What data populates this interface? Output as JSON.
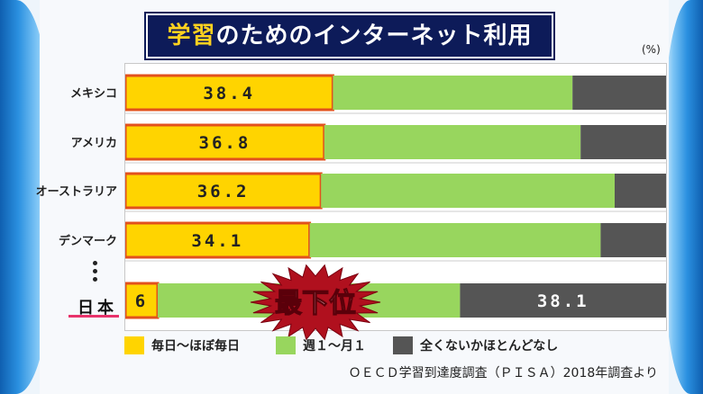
{
  "title_highlight": "学習",
  "title_rest": "のためのインターネット利用",
  "unit": "(%)",
  "chart_data": {
    "type": "bar",
    "stacked": true,
    "orientation": "horizontal",
    "title": "学習のためのインターネット利用",
    "unit": "(%)",
    "categories": [
      "メキシコ",
      "アメリカ",
      "オーストラリア",
      "デンマーク",
      "日本"
    ],
    "series": [
      {
        "name": "毎日〜ほぼ毎日",
        "color": "#ffd400",
        "values": [
          38.4,
          36.8,
          36.2,
          34.1,
          6
        ],
        "labels": [
          "38.4",
          "36.8",
          "36.2",
          "34.1",
          "6"
        ]
      },
      {
        "name": "週１〜月１",
        "color": "#98d65e",
        "values": [
          44.3,
          47.4,
          54.3,
          53.8,
          55.9
        ]
      },
      {
        "name": "全くないかほとんどなし",
        "color": "#555555",
        "values": [
          17.3,
          15.8,
          9.5,
          12.1,
          38.1
        ],
        "labels": [
          "",
          "",
          "",
          "",
          "38.1"
        ]
      }
    ],
    "xlim": [
      0,
      100
    ]
  },
  "annotation": "最下位",
  "ellipsis": "⋮",
  "source": "ＯＥＣＤ学習到達度調査（ＰＩＳＡ）2018年調査より"
}
